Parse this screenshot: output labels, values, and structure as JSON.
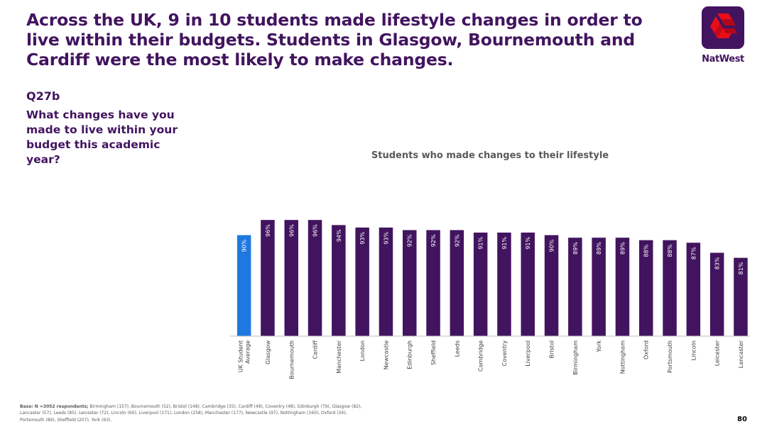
{
  "slide": {
    "headline": "Across the UK, 9 in 10 students made lifestyle changes in order to live within their budgets. Students in Glasgow, Bournemouth and Cardiff were the most likely to make changes.",
    "question_code": "Q27b",
    "question_text": "What changes have you made to live within your budget this academic year?",
    "base_label": "Base: N =3052 respondents;",
    "base_text": " Birmingham (157),  Bournemouth (52), Bristol (148), Cambridge (35), Cardiff (49), Coventry (48),  Edinburgh (79), Glasgow (82), Lancaster (57), Leeds (85), Leicester (72), Lincoln (60), Liverpool (171), London (258), Manchester (177), Newcastle (97), Nottingham (160), Oxford (34), Portsmouth (89), Sheffield (207), York (63).",
    "page_number": "80"
  },
  "brand": {
    "name": "NatWest",
    "logo_icon": "natwest-cubes-icon",
    "primary_color": "#42145f",
    "logo_red": "#e90d17"
  },
  "chart_data": {
    "type": "bar",
    "title": "Students who made changes to their lifestyle",
    "categories": [
      "UK Student Average",
      "Glasgow",
      "Bournemouth",
      "Cardiff",
      "Manchester",
      "London",
      "Newcastle",
      "Edinburgh",
      "Sheffield",
      "Leeds",
      "Cambridge",
      "Coventry",
      "Liverpool",
      "Bristol",
      "Birmingham",
      "York",
      "Nottingham",
      "Oxford",
      "Portsmouth",
      "Lincoln",
      "Leicester",
      "Lancaster"
    ],
    "values": [
      90,
      96,
      96,
      96,
      94,
      93,
      93,
      92,
      92,
      92,
      91,
      91,
      91,
      90,
      89,
      89,
      89,
      88,
      88,
      87,
      83,
      81
    ],
    "data_labels": [
      "90%",
      "96%",
      "96%",
      "96%",
      "94%",
      "93%",
      "93%",
      "92%",
      "92%",
      "92%",
      "91%",
      "91%",
      "91%",
      "90%",
      "89%",
      "89%",
      "89%",
      "88%",
      "88%",
      "87%",
      "83%",
      "81%"
    ],
    "colors": {
      "highlight": "#1f78e0",
      "default": "#42145f"
    },
    "highlight_index": 0,
    "ylim": [
      50,
      100
    ],
    "grid": false,
    "legend": "none"
  }
}
